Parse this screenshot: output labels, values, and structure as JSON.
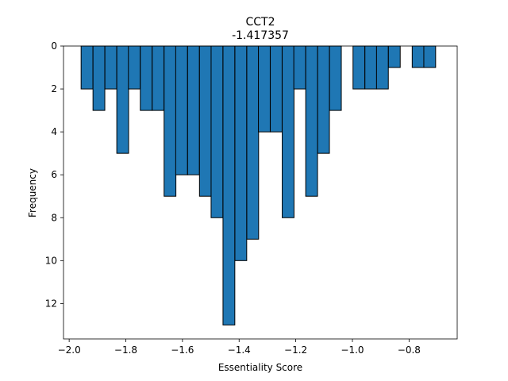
{
  "chart_data": {
    "type": "bar",
    "title": "CCT2",
    "subtitle": "-1.417357",
    "xlabel": "Essentiality Score",
    "ylabel": "Frequency",
    "xlim": [
      -2.02,
      -0.63
    ],
    "ylim": [
      0,
      13.65
    ],
    "y_inverted": true,
    "grid": false,
    "bar_width": 0.0417,
    "bar_color": "#1f77b4",
    "edge_color": "#000000",
    "x": [
      -1.937,
      -1.895,
      -1.853,
      -1.811,
      -1.77,
      -1.728,
      -1.686,
      -1.644,
      -1.603,
      -1.561,
      -1.519,
      -1.478,
      -1.436,
      -1.394,
      -1.352,
      -1.311,
      -1.269,
      -1.227,
      -1.186,
      -1.144,
      -1.102,
      -1.06,
      -0.977,
      -0.935,
      -0.894,
      -0.852,
      -0.768,
      -0.727
    ],
    "values": [
      2,
      3,
      2,
      5,
      2,
      3,
      3,
      7,
      6,
      6,
      7,
      8,
      13,
      10,
      9,
      4,
      4,
      8,
      2,
      7,
      5,
      3,
      2,
      2,
      2,
      1,
      1,
      1
    ],
    "x_ticks": [
      -2.0,
      -1.8,
      -1.6,
      -1.4,
      -1.2,
      -1.0,
      -0.8
    ],
    "x_tick_labels": [
      "−2.0",
      "−1.8",
      "−1.6",
      "−1.4",
      "−1.2",
      "−1.0",
      "−0.8"
    ],
    "y_ticks": [
      0,
      2,
      4,
      6,
      8,
      10,
      12
    ],
    "y_tick_labels": [
      "0",
      "2",
      "4",
      "6",
      "8",
      "10",
      "12"
    ]
  }
}
